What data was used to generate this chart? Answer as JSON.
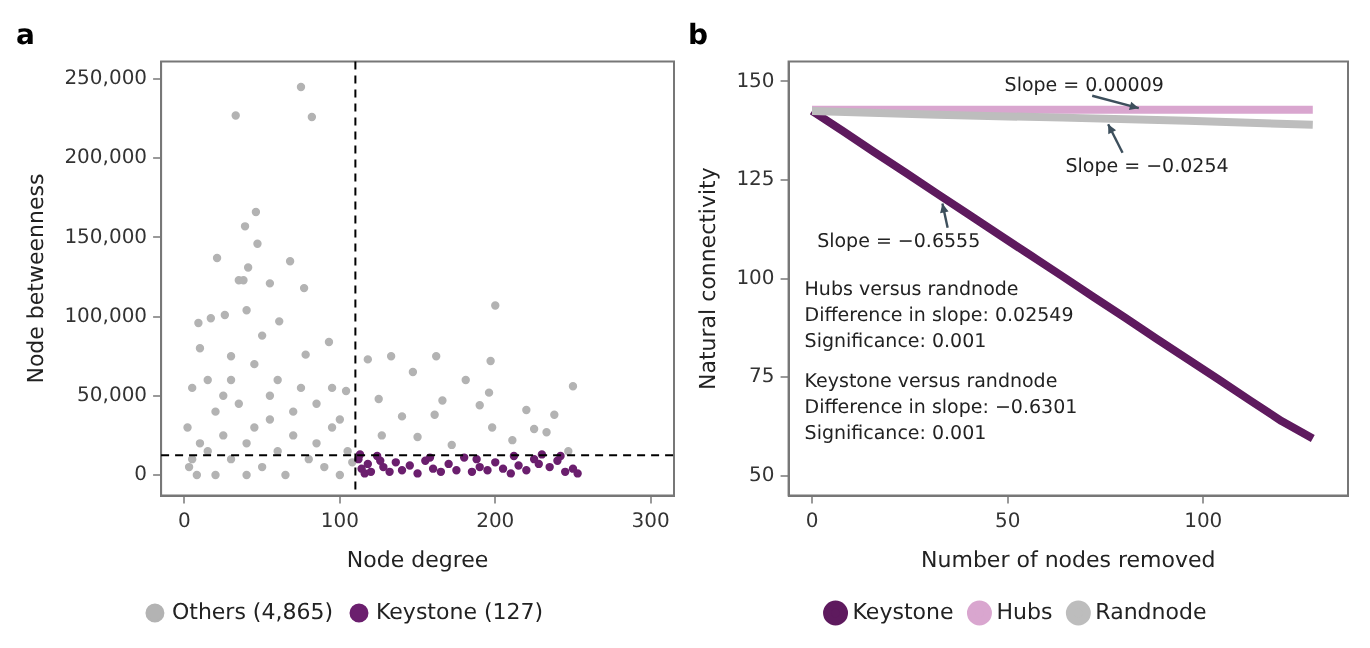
{
  "chart_data": [
    {
      "type": "scatter",
      "title": "a",
      "xlabel": "Node degree",
      "ylabel": "Node betweenness",
      "xlim": [
        -15,
        315
      ],
      "ylim": [
        -13000,
        261000
      ],
      "xticks": [
        0,
        100,
        200,
        300
      ],
      "yticks": [
        0,
        {
          "value": 50000,
          "label": "50,000"
        },
        {
          "value": 100000,
          "label": "100,000"
        },
        {
          "value": 150000,
          "label": "150,000"
        },
        {
          "value": 200000,
          "label": "200,000"
        },
        {
          "value": 250000,
          "label": "250,000"
        }
      ],
      "grid": false,
      "legend": "bottom",
      "marker": "circle",
      "ref_lines": [
        {
          "axis": "x",
          "value": 110,
          "line_style": "dashed",
          "color": "#000000"
        },
        {
          "axis": "y",
          "value": 12500,
          "line_style": "dashed",
          "color": "#000000"
        }
      ],
      "series": [
        {
          "name": "Others (4,865)",
          "color": "#b3b3b3",
          "x": [
            75,
            33,
            82,
            46,
            39,
            47,
            21,
            68,
            41,
            35,
            38,
            55,
            77,
            40,
            26,
            17,
            200,
            61,
            9,
            50,
            93,
            78,
            10,
            30,
            118,
            133,
            162,
            197,
            147,
            181,
            250,
            104,
            196,
            125,
            166,
            190,
            220,
            238,
            140,
            161,
            198,
            225,
            127,
            150,
            211,
            233,
            247,
            172,
            2,
            5,
            15,
            25,
            45,
            60,
            85,
            95,
            70,
            55,
            35,
            20,
            10,
            3,
            8,
            20,
            30,
            40,
            50,
            60,
            70,
            80,
            90,
            100,
            105,
            15,
            25,
            45,
            65,
            85,
            100,
            108,
            95,
            75,
            5,
            40,
            55,
            30
          ],
          "values": [
            245000,
            227000,
            226000,
            166000,
            157000,
            146000,
            137000,
            135000,
            131000,
            123000,
            123000,
            121000,
            118000,
            104000,
            101000,
            99000,
            107000,
            97000,
            96000,
            88000,
            84000,
            76000,
            80000,
            75000,
            73000,
            75000,
            75000,
            72000,
            65000,
            60000,
            56000,
            53000,
            52000,
            48000,
            47000,
            44000,
            41000,
            38000,
            37000,
            38000,
            30000,
            29000,
            25000,
            24000,
            22000,
            27000,
            15000,
            19000,
            30000,
            55000,
            60000,
            50000,
            70000,
            60000,
            45000,
            30000,
            40000,
            35000,
            45000,
            40000,
            20000,
            5000,
            0,
            0,
            10000,
            20000,
            5000,
            15000,
            25000,
            10000,
            5000,
            0,
            15000,
            15000,
            25000,
            30000,
            0,
            20000,
            35000,
            8000,
            55000,
            55000,
            10000,
            0,
            50000,
            60000
          ]
        },
        {
          "name": "Keystone (127)",
          "color": "#6b1f6e",
          "x": [
            112,
            114,
            116,
            118,
            120,
            124,
            128,
            132,
            136,
            140,
            145,
            150,
            155,
            160,
            165,
            170,
            175,
            180,
            185,
            190,
            195,
            200,
            205,
            210,
            215,
            220,
            225,
            230,
            235,
            240,
            245,
            250,
            253,
            113,
            126,
            158,
            188,
            212,
            228,
            242
          ],
          "values": [
            10000,
            4000,
            1000,
            7000,
            2000,
            12000,
            5000,
            2000,
            8000,
            3000,
            6000,
            1000,
            9000,
            4000,
            2000,
            7000,
            3000,
            11000,
            2000,
            5000,
            3000,
            8000,
            4000,
            1000,
            6000,
            3000,
            10000,
            13000,
            5000,
            9000,
            2000,
            4000,
            1000,
            13000,
            9000,
            11000,
            10000,
            12000,
            7000,
            12000
          ]
        }
      ]
    },
    {
      "type": "line",
      "title": "b",
      "xlabel": "Number of nodes removed",
      "ylabel": "Natural connectivity",
      "xlim": [
        -6,
        137
      ],
      "ylim": [
        45,
        155
      ],
      "xticks": [
        0,
        50,
        100
      ],
      "yticks": [
        50,
        75,
        100,
        125,
        150
      ],
      "grid": false,
      "legend": "bottom",
      "marker": "none",
      "annotations": [
        {
          "text": "Slope = 0.00009",
          "x": 85,
          "y": 142.8
        },
        {
          "text": "Slope = −0.0254",
          "x": 75,
          "y": 140.5
        },
        {
          "text": "Slope = −0.6555",
          "x": 33,
          "y": 120.5
        },
        "Hubs versus randnode\nDifference in slope: 0.02549\nSignificance: 0.001",
        "Keystone versus randnode\nDifference in slope: −0.6301\nSignificance: 0.001"
      ],
      "series": [
        {
          "name": "Keystone",
          "color": "#5e1a5e",
          "x": [
            0,
            8,
            16,
            24,
            32,
            40,
            48,
            56,
            64,
            72,
            80,
            88,
            96,
            104,
            112,
            120,
            128
          ],
          "values": [
            142.5,
            137.3,
            132,
            126.8,
            121.5,
            116.3,
            111,
            105.8,
            100.6,
            95.3,
            90.1,
            84.8,
            79.6,
            74.4,
            69.1,
            63.9,
            59.5
          ]
        },
        {
          "name": "Hubs",
          "color": "#d9a6cf",
          "x": [
            0,
            64,
            128
          ],
          "values": [
            142.8,
            142.8,
            142.8
          ]
        },
        {
          "name": "Randnode",
          "color": "#bdbdbd",
          "x": [
            0,
            32,
            64,
            96,
            128
          ],
          "values": [
            142.5,
            141.5,
            140.8,
            140,
            139
          ]
        }
      ]
    }
  ]
}
